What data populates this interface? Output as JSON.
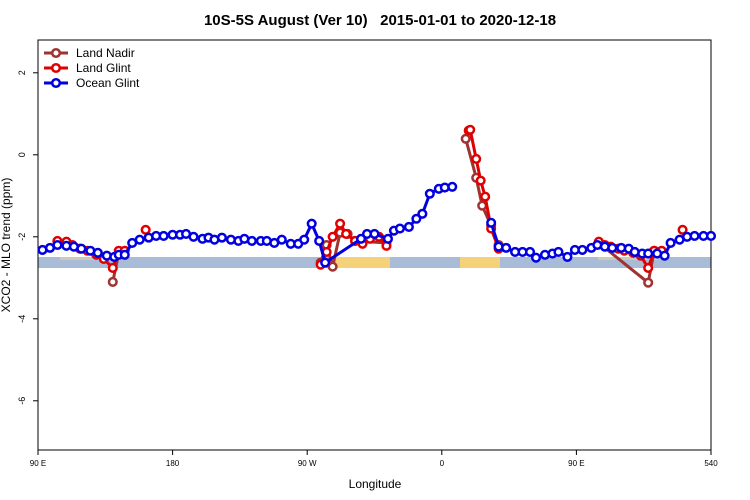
{
  "chart_data": {
    "type": "line",
    "title": "10S-5S August (Ver 10)   2015-01-01 to 2020-12-18",
    "x_label": "Longitude",
    "y_label": "XCO2 - MLO trend (ppm)",
    "xlim": [
      90,
      540
    ],
    "ylim": [
      -7.2,
      2.8
    ],
    "xticks": [
      {
        "value": 90,
        "label": "90 E"
      },
      180,
      {
        "value": 270,
        "label": "90 W"
      },
      {
        "value": 360,
        "label": "0"
      },
      {
        "value": 450,
        "label": "90 E"
      },
      540
    ],
    "yticks": [
      2,
      0,
      -2,
      -4,
      -6
    ],
    "legend": "top-left",
    "series": [
      {
        "name": "Land Nadir",
        "color": "#a03232",
        "x": [
          103,
          109,
          null,
          140,
          144,
          null,
          279,
          283,
          287,
          292,
          297,
          302,
          323,
          null,
          376,
          383,
          387,
          393,
          398,
          null,
          465,
          498,
          502
        ],
        "values": [
          -2.12,
          -2.15,
          null,
          -3.1,
          -2.39,
          null,
          -2.63,
          -2.2,
          -2.73,
          -1.9,
          -1.93,
          -2.1,
          -2.15,
          null,
          0.39,
          -0.56,
          -1.24,
          -1.73,
          -2.2,
          null,
          -2.15,
          -3.12,
          -2.34
        ]
      },
      {
        "name": "Land Glint",
        "color": "#e00000",
        "x": [
          103,
          109,
          113,
          118,
          123,
          129,
          134,
          140,
          144,
          148,
          null,
          162,
          null,
          279,
          283,
          287,
          292,
          296,
          302,
          307,
          312,
          318,
          323,
          null,
          378,
          379,
          383,
          386,
          389,
          393,
          398,
          null,
          465,
          469,
          473,
          478,
          482,
          488,
          493,
          498,
          502,
          507,
          null,
          521
        ],
        "values": [
          -2.1,
          -2.12,
          -2.2,
          -2.29,
          -2.34,
          -2.44,
          -2.54,
          -2.76,
          -2.34,
          -2.34,
          null,
          -1.83,
          null,
          -2.68,
          -2.37,
          -2.0,
          -1.68,
          -1.93,
          -2.1,
          -2.17,
          -2.05,
          -2.0,
          -2.22,
          null,
          0.59,
          0.61,
          -0.1,
          -0.63,
          -1.02,
          -1.8,
          -2.29,
          null,
          -2.12,
          -2.2,
          -2.24,
          -2.29,
          -2.34,
          -2.39,
          -2.46,
          -2.76,
          -2.34,
          -2.34,
          null,
          -1.83
        ]
      },
      {
        "name": "Ocean Glint",
        "color": "#0000e0",
        "x": [
          93,
          98,
          103,
          109,
          114,
          119,
          125,
          130,
          136,
          141,
          144,
          148,
          153,
          158,
          164,
          169,
          174,
          180,
          185,
          189,
          194,
          200,
          204,
          208,
          213,
          219,
          224,
          228,
          233,
          239,
          243,
          248,
          253,
          259,
          264,
          268,
          273,
          278,
          282,
          306,
          310,
          315,
          324,
          328,
          332,
          338,
          343,
          347,
          352,
          358,
          362,
          367,
          null,
          393,
          398,
          403,
          409,
          414,
          419,
          423,
          429,
          434,
          438,
          444,
          449,
          454,
          460,
          464,
          469,
          474,
          480,
          485,
          489,
          494,
          498,
          504,
          509,
          513,
          519,
          524,
          529,
          535,
          540
        ],
        "values": [
          -2.32,
          -2.27,
          -2.2,
          -2.22,
          -2.24,
          -2.29,
          -2.34,
          -2.39,
          -2.46,
          -2.49,
          -2.44,
          -2.44,
          -2.15,
          -2.07,
          -2.02,
          -1.98,
          -1.98,
          -1.95,
          -1.95,
          -1.93,
          -2.0,
          -2.05,
          -2.02,
          -2.07,
          -2.02,
          -2.07,
          -2.1,
          -2.05,
          -2.1,
          -2.1,
          -2.1,
          -2.15,
          -2.07,
          -2.17,
          -2.17,
          -2.07,
          -1.68,
          -2.1,
          -2.63,
          -2.05,
          -1.93,
          -1.93,
          -2.05,
          -1.85,
          -1.8,
          -1.76,
          -1.56,
          -1.44,
          -0.95,
          -0.83,
          -0.8,
          -0.78,
          null,
          -1.66,
          -2.24,
          -2.27,
          -2.37,
          -2.37,
          -2.37,
          -2.51,
          -2.44,
          -2.41,
          -2.37,
          -2.49,
          -2.32,
          -2.32,
          -2.27,
          -2.2,
          -2.24,
          -2.27,
          -2.27,
          -2.29,
          -2.37,
          -2.41,
          -2.41,
          -2.41,
          -2.46,
          -2.15,
          -2.07,
          -2.0,
          -1.98,
          -1.98,
          -1.98
        ]
      }
    ]
  }
}
